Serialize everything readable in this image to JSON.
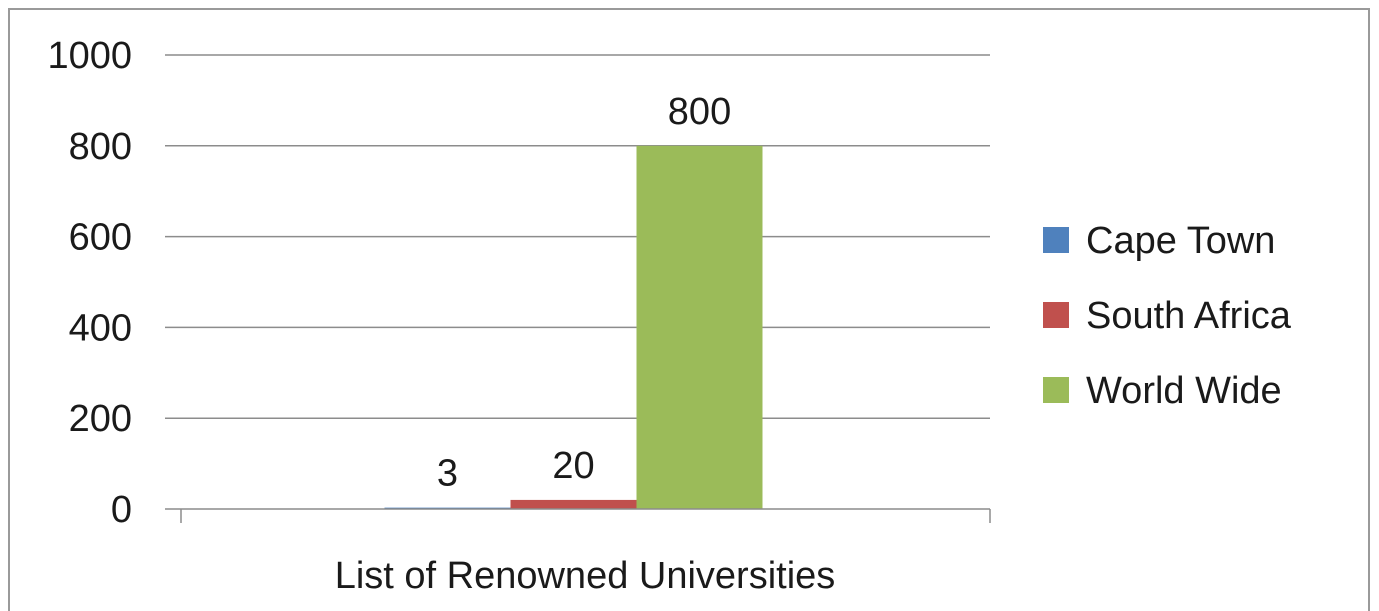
{
  "chart_data": {
    "type": "bar",
    "title": "",
    "xlabel": "",
    "ylabel": "",
    "categories": [
      "List of Renowned Universities"
    ],
    "series": [
      {
        "name": "Cape Town",
        "values": [
          3
        ],
        "color": "#4f81bd"
      },
      {
        "name": "South Africa",
        "values": [
          20
        ],
        "color": "#c0504d"
      },
      {
        "name": "World Wide",
        "values": [
          800
        ],
        "color": "#9bbb59"
      }
    ],
    "ylim": [
      0,
      1000
    ],
    "yticks": [
      0,
      200,
      400,
      600,
      800,
      1000
    ],
    "ytick_labels": [
      "0",
      "200",
      "400",
      "600",
      "800",
      "1000"
    ],
    "data_labels": [
      "3",
      "20",
      "800"
    ],
    "grid": true,
    "legend_position": "right"
  }
}
